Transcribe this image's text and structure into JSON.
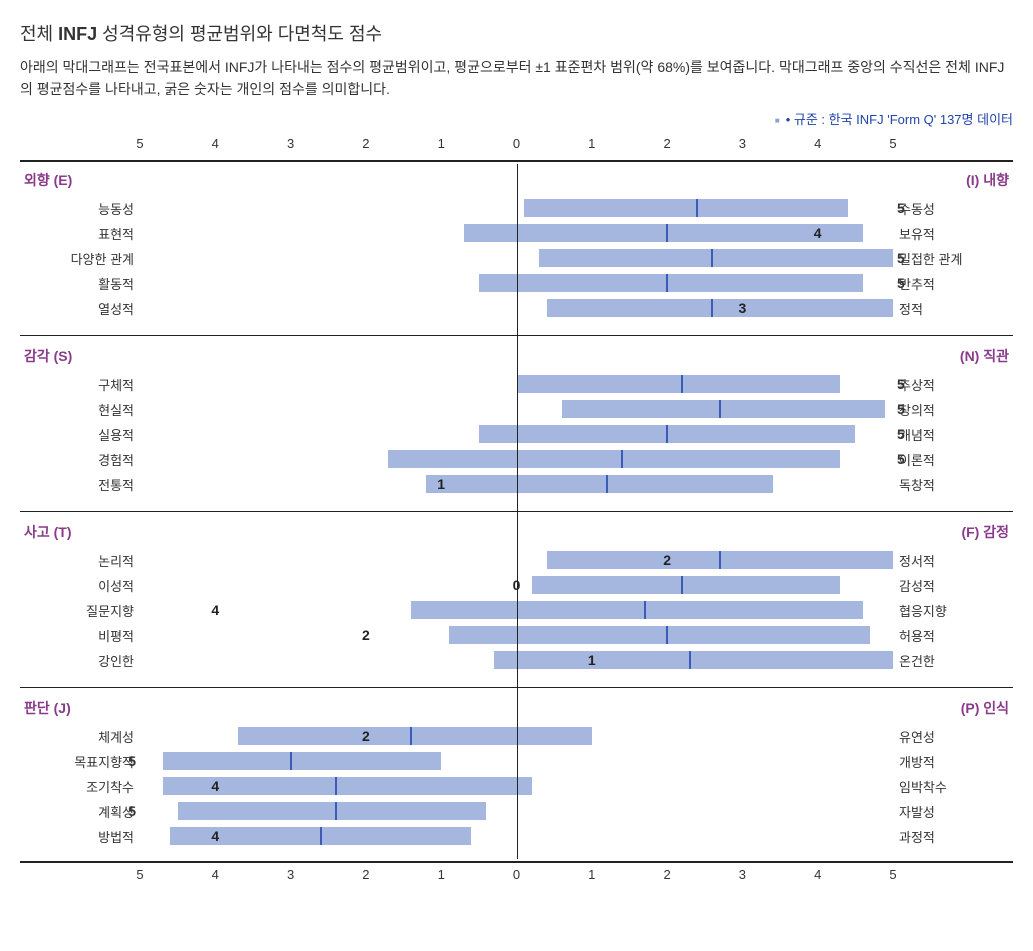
{
  "title_prefix": "전체 ",
  "title_bold": "INFJ",
  "title_suffix": " 성격유형의 평균범위와 다면척도 점수",
  "subtitle": "아래의 막대그래프는 전국표본에서 INFJ가 나타내는 점수의 평균범위이고, 평균으로부터 ±1 표준편차 범위(약 68%)를 보여줍니다. 막대그래프 중앙의 수직선은 전체 INFJ의 평균점수를 나타내고, 굵은 숫자는 개인의 점수를 의미합니다.",
  "legend": "규준 : 한국 INFJ 'Form Q' 137명 데이터",
  "axis_max": 5,
  "colors": {
    "bar": "#a5b6df",
    "mean": "#3c5bb5",
    "header": "#8a3a8a",
    "legend_text": "#2244aa",
    "rule": "#222222"
  },
  "groups": [
    {
      "left_header": "외향 (E)",
      "right_header": "(I) 내향",
      "rows": [
        {
          "left": "능동성",
          "right": "수동성",
          "bar_start": 0.1,
          "bar_end": 4.4,
          "mean": 2.4,
          "score": 5,
          "score_side": "right",
          "score_pos": null
        },
        {
          "left": "표현적",
          "right": "보유적",
          "bar_start": -0.7,
          "bar_end": 4.6,
          "mean": 2.0,
          "score": 4,
          "score_side": "on",
          "score_pos": 4.0
        },
        {
          "left": "다양한 관계",
          "right": "밀접한 관계",
          "bar_start": 0.3,
          "bar_end": 5.0,
          "mean": 2.6,
          "score": 5,
          "score_side": "right",
          "score_pos": null
        },
        {
          "left": "활동적",
          "right": "반추적",
          "bar_start": -0.5,
          "bar_end": 4.6,
          "mean": 2.0,
          "score": 5,
          "score_side": "right",
          "score_pos": null
        },
        {
          "left": "열성적",
          "right": "정적",
          "bar_start": 0.4,
          "bar_end": 5.0,
          "mean": 2.6,
          "score": 3,
          "score_side": "on",
          "score_pos": 3.0
        }
      ]
    },
    {
      "left_header": "감각 (S)",
      "right_header": "(N) 직관",
      "rows": [
        {
          "left": "구체적",
          "right": "추상적",
          "bar_start": 0.0,
          "bar_end": 4.3,
          "mean": 2.2,
          "score": 5,
          "score_side": "right",
          "score_pos": null
        },
        {
          "left": "현실적",
          "right": "창의적",
          "bar_start": 0.6,
          "bar_end": 4.9,
          "mean": 2.7,
          "score": 5,
          "score_side": "right",
          "score_pos": null
        },
        {
          "left": "실용적",
          "right": "개념적",
          "bar_start": -0.5,
          "bar_end": 4.5,
          "mean": 2.0,
          "score": 5,
          "score_side": "right",
          "score_pos": null
        },
        {
          "left": "경험적",
          "right": "이론적",
          "bar_start": -1.7,
          "bar_end": 4.3,
          "mean": 1.4,
          "score": 5,
          "score_side": "right",
          "score_pos": null
        },
        {
          "left": "전통적",
          "right": "독창적",
          "bar_start": -1.2,
          "bar_end": 3.4,
          "mean": 1.2,
          "score": 1,
          "score_side": "on",
          "score_pos": -1.0
        }
      ]
    },
    {
      "left_header": "사고 (T)",
      "right_header": "(F) 감정",
      "rows": [
        {
          "left": "논리적",
          "right": "정서적",
          "bar_start": 0.4,
          "bar_end": 5.0,
          "mean": 2.7,
          "score": 2,
          "score_side": "on",
          "score_pos": 2.0
        },
        {
          "left": "이성적",
          "right": "감성적",
          "bar_start": 0.2,
          "bar_end": 4.3,
          "mean": 2.2,
          "score": 0,
          "score_side": "on",
          "score_pos": 0.0
        },
        {
          "left": "질문지향",
          "right": "협응지향",
          "bar_start": -1.4,
          "bar_end": 4.6,
          "mean": 1.7,
          "score": 4,
          "score_side": "on",
          "score_pos": -4.0
        },
        {
          "left": "비평적",
          "right": "허용적",
          "bar_start": -0.9,
          "bar_end": 4.7,
          "mean": 2.0,
          "score": 2,
          "score_side": "on",
          "score_pos": -2.0
        },
        {
          "left": "강인한",
          "right": "온건한",
          "bar_start": -0.3,
          "bar_end": 5.0,
          "mean": 2.3,
          "score": 1,
          "score_side": "on",
          "score_pos": 1.0
        }
      ]
    },
    {
      "left_header": "판단 (J)",
      "right_header": "(P) 인식",
      "rows": [
        {
          "left": "체계성",
          "right": "유연성",
          "bar_start": -3.7,
          "bar_end": 1.0,
          "mean": -1.4,
          "score": 2,
          "score_side": "on",
          "score_pos": -2.0
        },
        {
          "left": "목표지향적",
          "right": "개방적",
          "bar_start": -4.7,
          "bar_end": -1.0,
          "mean": -3.0,
          "score": 5,
          "score_side": "left",
          "score_pos": null
        },
        {
          "left": "조기착수",
          "right": "임박착수",
          "bar_start": -4.7,
          "bar_end": 0.2,
          "mean": -2.4,
          "score": 4,
          "score_side": "on",
          "score_pos": -4.0
        },
        {
          "left": "계획성",
          "right": "자발성",
          "bar_start": -4.5,
          "bar_end": -0.4,
          "mean": -2.4,
          "score": 5,
          "score_side": "left",
          "score_pos": null
        },
        {
          "left": "방법적",
          "right": "과정적",
          "bar_start": -4.6,
          "bar_end": -0.6,
          "mean": -2.6,
          "score": 4,
          "score_side": "on",
          "score_pos": -4.0
        }
      ]
    }
  ]
}
